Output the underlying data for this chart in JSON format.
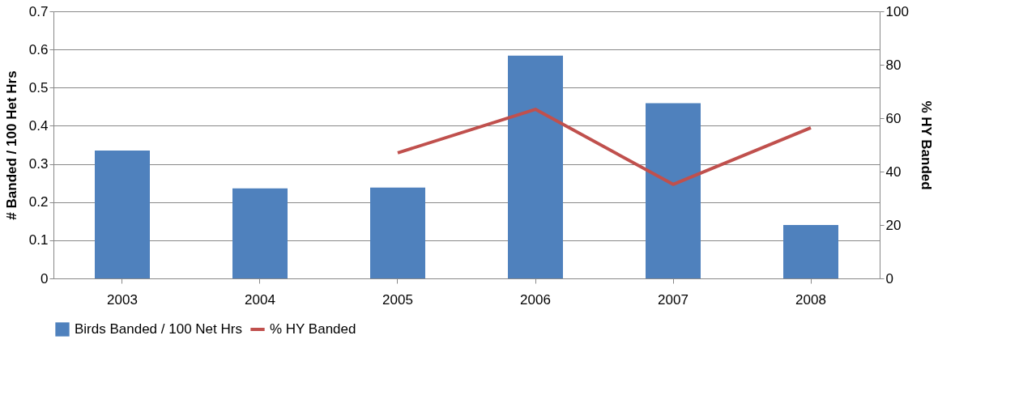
{
  "chart_data": {
    "type": "bar",
    "categories": [
      "2003",
      "2004",
      "2005",
      "2006",
      "2007",
      "2008"
    ],
    "series": [
      {
        "name": "Birds Banded / 100 Net Hrs",
        "color": "#4f81bd",
        "values": [
          0.335,
          0.236,
          0.238,
          0.584,
          0.459,
          0.14
        ]
      },
      {
        "name": "% HY Banded",
        "type": "line",
        "axis": "y2",
        "color": "#c0504d",
        "values": [
          null,
          null,
          47,
          63.3,
          35.2,
          56.4
        ]
      }
    ],
    "ylabel": "# Banded / 100 Het Hrs",
    "y2label": "% HY Banded",
    "ylim": [
      0,
      0.7
    ],
    "yticks": [
      0,
      0.1,
      0.2,
      0.3,
      0.4,
      0.5,
      0.6,
      0.7
    ],
    "y2lim": [
      0,
      100
    ],
    "y2ticks": [
      0,
      20,
      40,
      60,
      80,
      100
    ],
    "grid": "y",
    "legend": "bottom"
  }
}
